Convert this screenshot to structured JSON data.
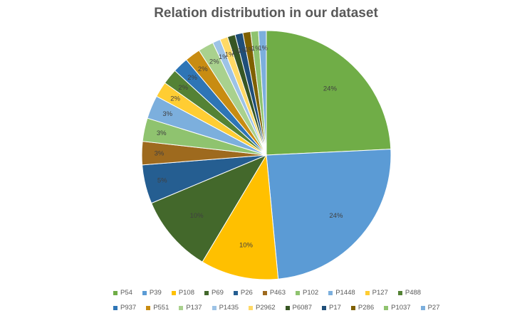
{
  "chart_data": {
    "type": "pie",
    "title": "Relation distribution in our dataset",
    "slices": [
      {
        "label": "P54",
        "value": 24,
        "display": "24%",
        "color": "#70ad47"
      },
      {
        "label": "P39",
        "value": 24,
        "display": "24%",
        "color": "#5b9bd5"
      },
      {
        "label": "P108",
        "value": 10,
        "display": "10%",
        "color": "#ffc000"
      },
      {
        "label": "P69",
        "value": 10,
        "display": "10%",
        "color": "#43682b"
      },
      {
        "label": "P26",
        "value": 5,
        "display": "5%",
        "color": "#255e91"
      },
      {
        "label": "P463",
        "value": 3,
        "display": "3%",
        "color": "#9e6a1e"
      },
      {
        "label": "P102",
        "value": 3,
        "display": "3%",
        "color": "#8fc36f"
      },
      {
        "label": "P1448",
        "value": 3,
        "display": "3%",
        "color": "#7cafdd"
      },
      {
        "label": "P127",
        "value": 2,
        "display": "2%",
        "color": "#ffcd33"
      },
      {
        "label": "P488",
        "value": 2,
        "display": "2%",
        "color": "#548235"
      },
      {
        "label": "P937",
        "value": 2,
        "display": "2%",
        "color": "#2e75b6"
      },
      {
        "label": "P551",
        "value": 2,
        "display": "2%",
        "color": "#c88c12"
      },
      {
        "label": "P137",
        "value": 2,
        "display": "2%",
        "color": "#a9d18e"
      },
      {
        "label": "P1435",
        "value": 1,
        "display": "1%",
        "color": "#9dc3e6"
      },
      {
        "label": "P2962",
        "value": 1,
        "display": "1%",
        "color": "#ffd966"
      },
      {
        "label": "P6087",
        "value": 1,
        "display": "1%",
        "color": "#375623"
      },
      {
        "label": "P17",
        "value": 1,
        "display": "1%",
        "color": "#1f4e79"
      },
      {
        "label": "P286",
        "value": 1,
        "display": "1%",
        "color": "#7f6000"
      },
      {
        "label": "P1037",
        "value": 1,
        "display": "1%",
        "color": "#8fc36f"
      },
      {
        "label": "P27",
        "value": 1,
        "display": "1%",
        "color": "#7cafdd"
      }
    ],
    "legend_position": "bottom"
  }
}
